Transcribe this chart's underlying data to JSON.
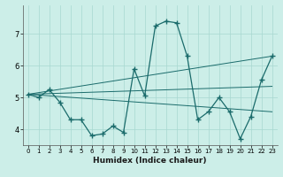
{
  "xlabel": "Humidex (Indice chaleur)",
  "bg_color": "#cceee8",
  "line_color": "#1a6b6b",
  "grid_color": "#a8d8d0",
  "x_values": [
    0,
    1,
    2,
    3,
    4,
    5,
    6,
    7,
    8,
    9,
    10,
    11,
    12,
    13,
    14,
    15,
    16,
    17,
    18,
    19,
    20,
    21,
    22,
    23
  ],
  "y_main": [
    5.1,
    5.0,
    5.25,
    4.85,
    4.3,
    4.3,
    3.8,
    3.85,
    4.1,
    3.9,
    5.9,
    5.05,
    7.25,
    7.4,
    7.35,
    6.3,
    4.3,
    4.55,
    5.0,
    4.55,
    3.7,
    4.4,
    5.55,
    6.3
  ],
  "ylim": [
    3.5,
    7.9
  ],
  "xlim": [
    -0.5,
    23.5
  ],
  "yticks": [
    4,
    5,
    6,
    7
  ],
  "xticks": [
    0,
    1,
    2,
    3,
    4,
    5,
    6,
    7,
    8,
    9,
    10,
    11,
    12,
    13,
    14,
    15,
    16,
    17,
    18,
    19,
    20,
    21,
    22,
    23
  ],
  "trend_lines": [
    {
      "x0": 0,
      "y0": 5.1,
      "x1": 23,
      "y1": 6.3
    },
    {
      "x0": 0,
      "y0": 5.1,
      "x1": 23,
      "y1": 4.55
    },
    {
      "x0": 0,
      "y0": 5.1,
      "x1": 23,
      "y1": 5.35
    }
  ]
}
